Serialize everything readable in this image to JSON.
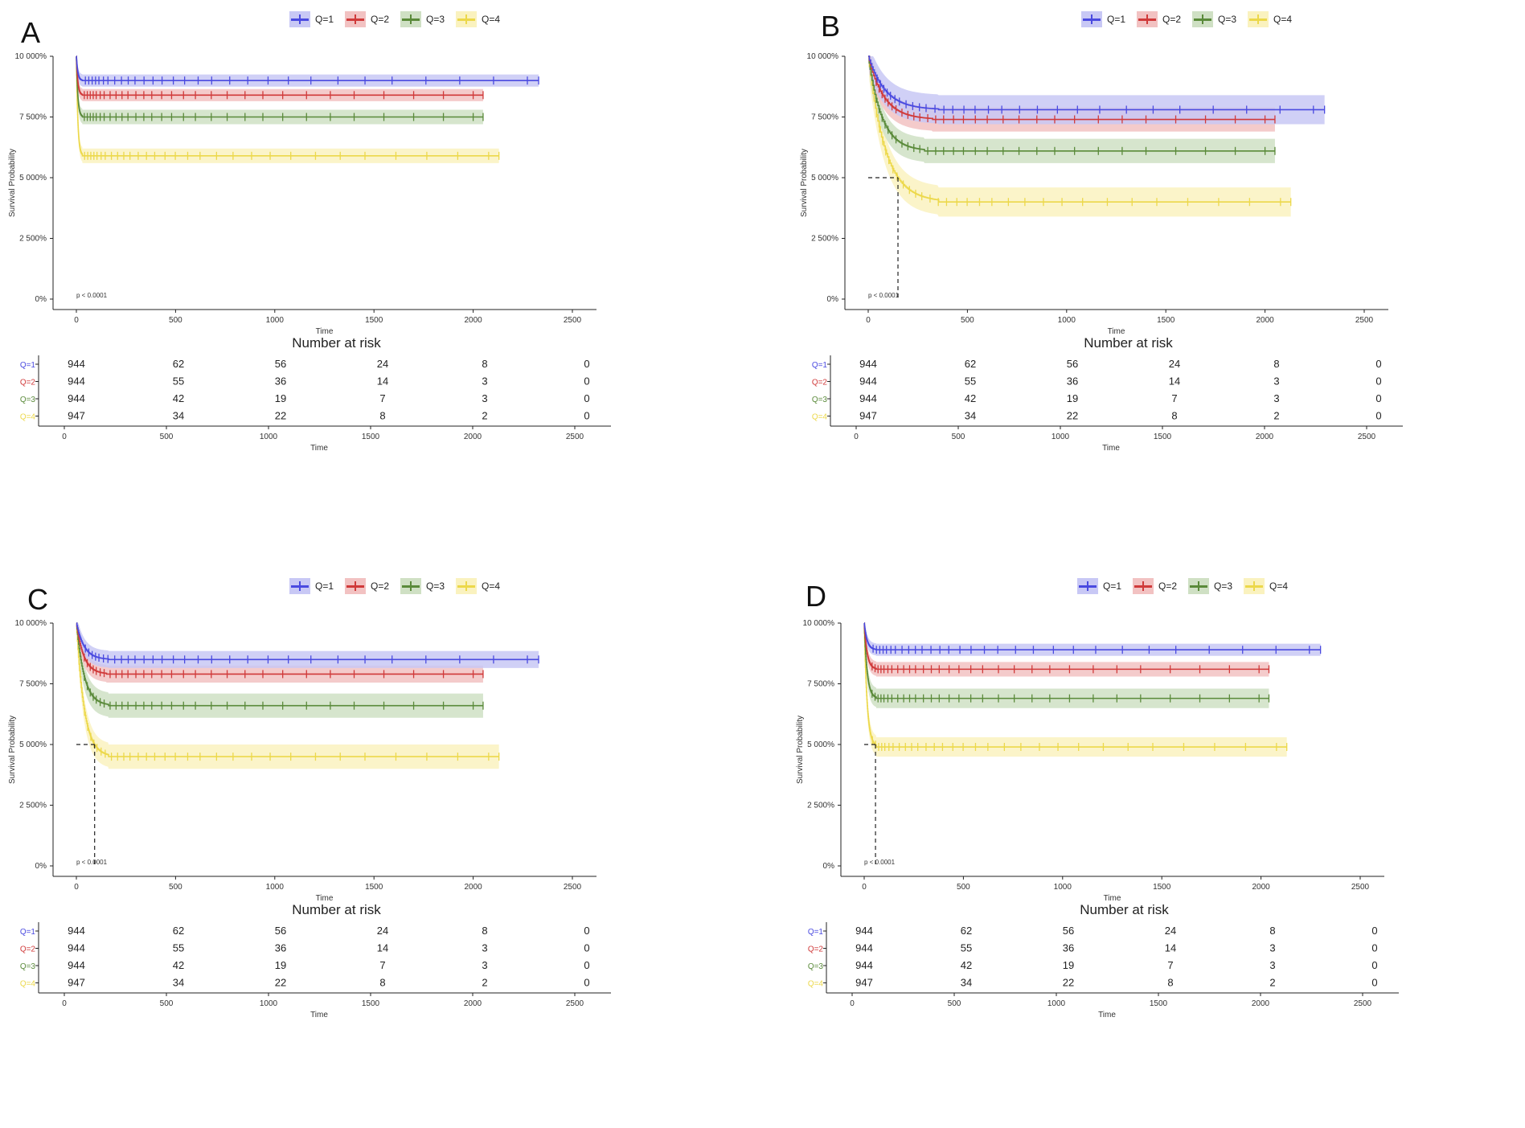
{
  "legend": {
    "labels": [
      "Q=1",
      "Q=2",
      "Q=3",
      "Q=4"
    ]
  },
  "colors": {
    "q1": "#4a4ae0",
    "q2": "#d03a3a",
    "q3": "#5a8a3a",
    "q4": "#ecd84a",
    "q1_band": "#c8c8f5",
    "q2_band": "#f2c2c2",
    "q3_band": "#cfe0c4",
    "q4_band": "#faf2bf"
  },
  "risk_table": {
    "title": "Number at risk",
    "xlabel": "Time",
    "row_labels": [
      "Q=1",
      "Q=2",
      "Q=3",
      "Q=4"
    ],
    "ticks": [
      "0",
      "500",
      "1000",
      "1500",
      "2000",
      "2500"
    ],
    "values": [
      [
        944,
        62,
        56,
        24,
        8,
        0
      ],
      [
        944,
        55,
        36,
        14,
        3,
        0
      ],
      [
        944,
        42,
        19,
        7,
        3,
        0
      ],
      [
        947,
        34,
        22,
        8,
        2,
        0
      ]
    ]
  },
  "chart_data": [
    {
      "panel": "A",
      "type": "line",
      "ylabel": "Survival Probability",
      "xlabel": "Time",
      "xlim": [
        0,
        2500
      ],
      "ylim": [
        0,
        100
      ],
      "x_ticks": [
        "0",
        "500",
        "1000",
        "1500",
        "2000",
        "2500"
      ],
      "y_ticks": [
        "0%",
        "2 500%",
        "5 000%",
        "7 500%",
        "10 000%"
      ],
      "pvalue": "p < 0.0001",
      "median_line": null,
      "series": [
        {
          "name": "Q=1",
          "plateau": 90,
          "drop_end": 30,
          "end_time": 2330,
          "band": 2.5
        },
        {
          "name": "Q=2",
          "plateau": 84,
          "drop_end": 30,
          "end_time": 2050,
          "band": 2.5
        },
        {
          "name": "Q=3",
          "plateau": 75,
          "drop_end": 30,
          "end_time": 2050,
          "band": 3
        },
        {
          "name": "Q=4",
          "plateau": 59,
          "drop_end": 30,
          "end_time": 2130,
          "band": 3
        }
      ]
    },
    {
      "panel": "B",
      "type": "line",
      "ylabel": "Survival Probability",
      "xlabel": "Time",
      "xlim": [
        0,
        2500
      ],
      "ylim": [
        0,
        100
      ],
      "x_ticks": [
        "0",
        "500",
        "1000",
        "1500",
        "2000",
        "2500"
      ],
      "y_ticks": [
        "0%",
        "2 500%",
        "5 000%",
        "7 500%",
        "10 000%"
      ],
      "pvalue": "p < 0.0001",
      "median_line": 75,
      "series": [
        {
          "name": "Q=1",
          "plateau": 78,
          "drop_end": 350,
          "end_time": 2300,
          "band": 6
        },
        {
          "name": "Q=2",
          "plateau": 74,
          "drop_end": 320,
          "end_time": 2050,
          "band": 5
        },
        {
          "name": "Q=3",
          "plateau": 61,
          "drop_end": 280,
          "end_time": 2050,
          "band": 5
        },
        {
          "name": "Q=4",
          "plateau": 40,
          "drop_end": 350,
          "end_time": 2130,
          "band": 6
        }
      ]
    },
    {
      "panel": "C",
      "type": "line",
      "ylabel": "Survival Probability",
      "xlabel": "Time",
      "xlim": [
        0,
        2500
      ],
      "ylim": [
        0,
        100
      ],
      "x_ticks": [
        "0",
        "500",
        "1000",
        "1500",
        "2000",
        "2500"
      ],
      "y_ticks": [
        "0%",
        "2 500%",
        "5 000%",
        "7 500%",
        "10 000%"
      ],
      "pvalue": "p < 0.0001",
      "median_line": 80,
      "series": [
        {
          "name": "Q=1",
          "plateau": 85,
          "drop_end": 160,
          "end_time": 2330,
          "band": 3.5
        },
        {
          "name": "Q=2",
          "plateau": 79,
          "drop_end": 150,
          "end_time": 2050,
          "band": 3.5
        },
        {
          "name": "Q=3",
          "plateau": 66,
          "drop_end": 160,
          "end_time": 2050,
          "band": 5
        },
        {
          "name": "Q=4",
          "plateau": 45,
          "drop_end": 160,
          "end_time": 2130,
          "band": 5
        }
      ]
    },
    {
      "panel": "D",
      "type": "line",
      "ylabel": "Survival Probability",
      "xlabel": "Time",
      "xlim": [
        0,
        2500
      ],
      "ylim": [
        0,
        100
      ],
      "x_ticks": [
        "0",
        "500",
        "1000",
        "1500",
        "2000",
        "2500"
      ],
      "y_ticks": [
        "0%",
        "2 500%",
        "5 000%",
        "7 500%",
        "10 000%"
      ],
      "pvalue": "p < 0.0001",
      "median_line": 75,
      "series": [
        {
          "name": "Q=1",
          "plateau": 89,
          "drop_end": 60,
          "end_time": 2300,
          "band": 2.5
        },
        {
          "name": "Q=2",
          "plateau": 81,
          "drop_end": 60,
          "end_time": 2040,
          "band": 3
        },
        {
          "name": "Q=3",
          "plateau": 69,
          "drop_end": 60,
          "end_time": 2040,
          "band": 4
        },
        {
          "name": "Q=4",
          "plateau": 49,
          "drop_end": 60,
          "end_time": 2130,
          "band": 4
        }
      ]
    }
  ]
}
